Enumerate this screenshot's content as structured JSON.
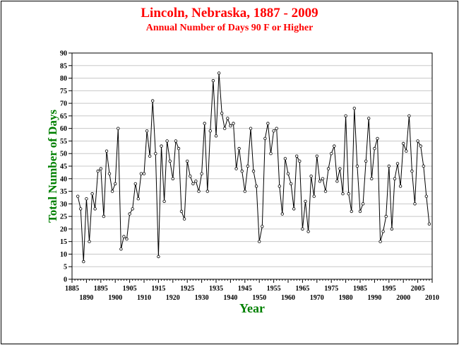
{
  "colors": {
    "title": "#ff0000",
    "axis_title": "#008000",
    "line": "#000000",
    "grid": "#c8c8c8",
    "marker_fill": "#ffffff"
  },
  "chart_data": {
    "type": "line",
    "title": "Lincoln, Nebraska, 1887 - 2009",
    "subtitle": "Annual Number of Days 90 F or Higher",
    "xlabel": "Year",
    "ylabel": "Total Number of Days",
    "xlim": [
      1885,
      2010
    ],
    "ylim": [
      0,
      90
    ],
    "grid": "horizontal",
    "legend": "none",
    "x_ticks_upper": [
      1885,
      1895,
      1905,
      1915,
      1925,
      1935,
      1945,
      1955,
      1965,
      1975,
      1985,
      1995,
      2005
    ],
    "x_ticks_lower": [
      1890,
      1900,
      1910,
      1920,
      1930,
      1940,
      1950,
      1960,
      1970,
      1980,
      1990,
      2000,
      2010
    ],
    "y_ticks": [
      0,
      5,
      10,
      15,
      20,
      25,
      30,
      35,
      40,
      45,
      50,
      55,
      60,
      65,
      70,
      75,
      80,
      85,
      90
    ],
    "series": [
      {
        "x": [
          1887,
          1888,
          1889,
          1890,
          1891,
          1892,
          1893,
          1894,
          1895,
          1896,
          1897,
          1898,
          1899,
          1900,
          1901,
          1902,
          1903,
          1904,
          1905,
          1906,
          1907,
          1908,
          1909,
          1910,
          1911,
          1912,
          1913,
          1914,
          1915,
          1916,
          1917,
          1918,
          1919,
          1920,
          1921,
          1922,
          1923,
          1924,
          1925,
          1926,
          1927,
          1928,
          1929,
          1930,
          1931,
          1932,
          1933,
          1934,
          1935,
          1936,
          1937,
          1938,
          1939,
          1940,
          1941,
          1942,
          1943,
          1944,
          1945,
          1946,
          1947,
          1948,
          1949,
          1950,
          1951,
          1952,
          1953,
          1954,
          1955,
          1956,
          1957,
          1958,
          1959,
          1960,
          1961,
          1962,
          1963,
          1964,
          1965,
          1966,
          1967,
          1968,
          1969,
          1970,
          1971,
          1972,
          1973,
          1974,
          1975,
          1976,
          1977,
          1978,
          1979,
          1980,
          1981,
          1982,
          1983,
          1984,
          1985,
          1986,
          1987,
          1988,
          1989,
          1990,
          1991,
          1992,
          1993,
          1994,
          1995,
          1996,
          1997,
          1998,
          1999,
          2000,
          2001,
          2002,
          2003,
          2004,
          2005,
          2006,
          2007,
          2008,
          2009
        ],
        "values": [
          33,
          28,
          7,
          32,
          15,
          34,
          28,
          43,
          44,
          25,
          51,
          42,
          35,
          38,
          60,
          12,
          17,
          16,
          26,
          28,
          38,
          32,
          42,
          42,
          59,
          49,
          71,
          50,
          9,
          53,
          31,
          55,
          47,
          40,
          55,
          52,
          27,
          24,
          47,
          41,
          38,
          39,
          35,
          42,
          62,
          35,
          59,
          79,
          57,
          82,
          66,
          60,
          64,
          61,
          62,
          44,
          52,
          43,
          35,
          45,
          60,
          43,
          37,
          15,
          21,
          56,
          62,
          50,
          59,
          60,
          37,
          26,
          48,
          42,
          38,
          28,
          49,
          47,
          20,
          31,
          19,
          41,
          33,
          49,
          39,
          40,
          35,
          44,
          50,
          53,
          39,
          44,
          34,
          65,
          34,
          27,
          68,
          45,
          27,
          30,
          47,
          64,
          40,
          52,
          56,
          15,
          19,
          25,
          45,
          20,
          40,
          46,
          37,
          54,
          51,
          65,
          43,
          30,
          55,
          53,
          45,
          33,
          22
        ]
      }
    ]
  }
}
